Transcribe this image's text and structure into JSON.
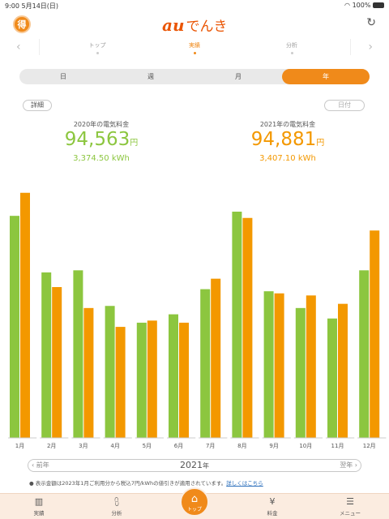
{
  "status_bar": {
    "time": "9:00",
    "date": "5月14日(日)",
    "battery": "100%"
  },
  "header": {
    "badge": "得",
    "logo_au": "au",
    "logo_denki": "でんき"
  },
  "pager": {
    "items": [
      {
        "label": "トップ"
      },
      {
        "label": "実績",
        "active": true
      },
      {
        "label": "分析"
      }
    ]
  },
  "periods": [
    {
      "label": "日"
    },
    {
      "label": "週"
    },
    {
      "label": "月"
    },
    {
      "label": "年",
      "active": true
    }
  ],
  "buttons": {
    "detail": "詳細",
    "date": "日付"
  },
  "summary": {
    "left": {
      "label": "2020年の電気料金",
      "amount": "94,563",
      "yen": "円",
      "kwh": "3,374.50 kWh",
      "color": "#8cc63f"
    },
    "right": {
      "label": "2021年の電気料金",
      "amount": "94,881",
      "yen": "円",
      "kwh": "3,407.10 kWh",
      "color": "#f39800"
    }
  },
  "chart_data": {
    "type": "bar",
    "categories": [
      "1月",
      "2月",
      "3月",
      "4月",
      "5月",
      "6月",
      "7月",
      "8月",
      "9月",
      "10月",
      "11月",
      "12月"
    ],
    "series": [
      {
        "name": "2020年",
        "color": "#8cc63f",
        "values": [
          10.6,
          7.9,
          8.0,
          6.3,
          5.5,
          5.9,
          7.1,
          10.8,
          7.0,
          6.2,
          5.7,
          8.0
        ]
      },
      {
        "name": "2021年",
        "color": "#f39800",
        "values": [
          11.7,
          7.2,
          6.2,
          5.3,
          5.6,
          5.5,
          7.6,
          10.5,
          6.9,
          6.8,
          6.4,
          9.9
        ]
      }
    ],
    "ylim": [
      0,
      12
    ]
  },
  "year_nav": {
    "prev": "前年",
    "year": "2021",
    "year_unit": "年",
    "next": "翌年"
  },
  "note": {
    "text": "表示金額は2023年1月ご利用分から税込7円/kWhの値引きが適用されています。",
    "link": "詳しくはこちら"
  },
  "tabbar": {
    "items": [
      {
        "label": "実績",
        "icon": "bar-chart-icon"
      },
      {
        "label": "分析",
        "icon": "analysis-icon"
      },
      {
        "label": "トップ",
        "icon": "home-icon"
      },
      {
        "label": "料金",
        "icon": "yen-icon"
      },
      {
        "label": "メニュー",
        "icon": "menu-icon"
      }
    ]
  }
}
